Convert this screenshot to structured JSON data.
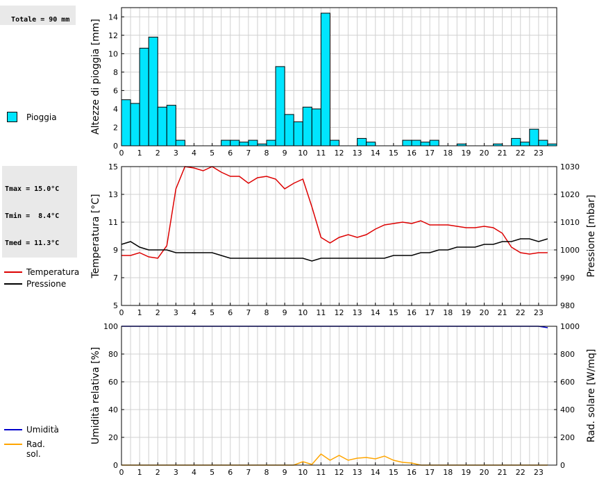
{
  "rain_info": {
    "total_label": "Totale = 90 mm"
  },
  "temp_info": {
    "lines": [
      "Tmax = 15.0°C",
      "Tmin =  8.4°C",
      "Tmed = 11.3°C"
    ]
  },
  "legends": {
    "pioggia": "Pioggia",
    "temperatura": "Temperatura",
    "pressione": "Pressione",
    "umidita": "Umidità",
    "rad_sol": "Rad. sol."
  },
  "colors": {
    "rain_fill": "#00e5ff",
    "temperature": "#dd0000",
    "pressure": "#000000",
    "humidity": "#0000cc",
    "radiation": "#ffa500",
    "grid": "#d0d0d0"
  },
  "chart_data": [
    {
      "type": "bar",
      "ylabel": "Altezze di pioggia [mm]",
      "ylim": [
        0,
        15
      ],
      "yticks": [
        0,
        2,
        4,
        6,
        8,
        10,
        12,
        14
      ],
      "xlim": [
        0,
        24
      ],
      "xticks": [
        0,
        1,
        2,
        3,
        4,
        5,
        6,
        7,
        8,
        9,
        10,
        11,
        12,
        13,
        14,
        15,
        16,
        17,
        18,
        19,
        20,
        21,
        22,
        23
      ],
      "bar_width_hours": 0.5,
      "x": [
        0,
        0.5,
        1,
        1.5,
        2,
        2.5,
        3,
        3.5,
        4,
        4.5,
        5,
        5.5,
        6,
        6.5,
        7,
        7.5,
        8,
        8.5,
        9,
        9.5,
        10,
        10.5,
        11,
        11.5,
        12,
        12.5,
        13,
        13.5,
        14,
        14.5,
        15,
        15.5,
        16,
        16.5,
        17,
        17.5,
        18,
        18.5,
        19,
        19.5,
        20,
        20.5,
        21,
        21.5,
        22,
        22.5,
        23,
        23.5
      ],
      "values": [
        5.0,
        4.6,
        10.6,
        11.8,
        4.2,
        4.4,
        0.6,
        0,
        0,
        0,
        0,
        0.6,
        0.6,
        0.4,
        0.6,
        0.2,
        0.6,
        8.6,
        3.4,
        2.6,
        4.2,
        4.0,
        14.4,
        0.6,
        0,
        0,
        0.8,
        0.4,
        0,
        0,
        0,
        0.6,
        0.6,
        0.4,
        0.6,
        0,
        0,
        0.2,
        0,
        0,
        0,
        0.2,
        0,
        0.8,
        0.4,
        1.8,
        0.6,
        0.2
      ],
      "series_name": "Pioggia"
    },
    {
      "type": "line",
      "ylabel": "Temperatura [°C]",
      "ylabel_right": "Pressione [mbar]",
      "ylim": [
        5,
        15
      ],
      "yticks": [
        5,
        7,
        9,
        11,
        13,
        15
      ],
      "ylim_right": [
        980,
        1030
      ],
      "yticks_right": [
        980,
        990,
        1000,
        1010,
        1020,
        1030
      ],
      "xlim": [
        0,
        24
      ],
      "xticks": [
        0,
        1,
        2,
        3,
        4,
        5,
        6,
        7,
        8,
        9,
        10,
        11,
        12,
        13,
        14,
        15,
        16,
        17,
        18,
        19,
        20,
        21,
        22,
        23
      ],
      "series": [
        {
          "name": "Temperatura",
          "axis": "left",
          "x": [
            0,
            0.5,
            1,
            1.5,
            2,
            2.5,
            3,
            3.5,
            4,
            4.5,
            5,
            5.5,
            6,
            6.5,
            7,
            7.5,
            8,
            8.5,
            9,
            9.5,
            10,
            10.5,
            11,
            11.5,
            12,
            12.5,
            13,
            13.5,
            14,
            14.5,
            15,
            15.5,
            16,
            16.5,
            17,
            17.5,
            18,
            18.5,
            19,
            19.5,
            20,
            20.5,
            21,
            21.5,
            22,
            22.5,
            23,
            23.5
          ],
          "values": [
            8.6,
            8.6,
            8.8,
            8.5,
            8.4,
            9.3,
            13.4,
            15.0,
            14.9,
            14.7,
            15.0,
            14.6,
            14.3,
            14.3,
            13.8,
            14.2,
            14.3,
            14.1,
            13.4,
            13.8,
            14.1,
            12.1,
            9.9,
            9.5,
            9.9,
            10.1,
            9.9,
            10.1,
            10.5,
            10.8,
            10.9,
            11.0,
            10.9,
            11.1,
            10.8,
            10.8,
            10.8,
            10.7,
            10.6,
            10.6,
            10.7,
            10.6,
            10.2,
            9.2,
            8.8,
            8.7,
            8.8,
            8.8
          ]
        },
        {
          "name": "Pressione",
          "axis": "right",
          "x": [
            0,
            0.5,
            1,
            1.5,
            2,
            2.5,
            3,
            3.5,
            4,
            4.5,
            5,
            5.5,
            6,
            6.5,
            7,
            7.5,
            8,
            8.5,
            9,
            9.5,
            10,
            10.5,
            11,
            11.5,
            12,
            12.5,
            13,
            13.5,
            14,
            14.5,
            15,
            15.5,
            16,
            16.5,
            17,
            17.5,
            18,
            18.5,
            19,
            19.5,
            20,
            20.5,
            21,
            21.5,
            22,
            22.5,
            23,
            23.5
          ],
          "values": [
            1002,
            1003,
            1001,
            1000,
            1000,
            1000,
            999,
            999,
            999,
            999,
            999,
            998,
            997,
            997,
            997,
            997,
            997,
            997,
            997,
            997,
            997,
            996,
            997,
            997,
            997,
            997,
            997,
            997,
            997,
            997,
            998,
            998,
            998,
            999,
            999,
            1000,
            1000,
            1001,
            1001,
            1001,
            1002,
            1002,
            1003,
            1003,
            1004,
            1004,
            1003,
            1004
          ]
        }
      ]
    },
    {
      "type": "line",
      "ylabel": "Umidità relativa [%]",
      "ylabel_right": "Rad. solare [W/mq]",
      "ylim": [
        0,
        100
      ],
      "yticks": [
        0,
        20,
        40,
        60,
        80,
        100
      ],
      "ylim_right": [
        0,
        1000
      ],
      "yticks_right": [
        0,
        200,
        400,
        600,
        800,
        1000
      ],
      "xlim": [
        0,
        24
      ],
      "xticks": [
        0,
        1,
        2,
        3,
        4,
        5,
        6,
        7,
        8,
        9,
        10,
        11,
        12,
        13,
        14,
        15,
        16,
        17,
        18,
        19,
        20,
        21,
        22,
        23
      ],
      "series": [
        {
          "name": "Umidità",
          "axis": "left",
          "x": [
            0,
            0.5,
            1,
            1.5,
            2,
            2.5,
            3,
            3.5,
            4,
            4.5,
            5,
            5.5,
            6,
            6.5,
            7,
            7.5,
            8,
            8.5,
            9,
            9.5,
            10,
            10.5,
            11,
            11.5,
            12,
            12.5,
            13,
            13.5,
            14,
            14.5,
            15,
            15.5,
            16,
            16.5,
            17,
            17.5,
            18,
            18.5,
            19,
            19.5,
            20,
            20.5,
            21,
            21.5,
            22,
            22.5,
            23,
            23.5
          ],
          "values": [
            100,
            100,
            100,
            100,
            100,
            100,
            100,
            100,
            100,
            100,
            100,
            100,
            100,
            100,
            100,
            100,
            100,
            100,
            100,
            100,
            100,
            100,
            100,
            100,
            100,
            100,
            100,
            100,
            100,
            100,
            100,
            100,
            100,
            100,
            100,
            100,
            100,
            100,
            100,
            100,
            100,
            100,
            100,
            100,
            100,
            100,
            100,
            99
          ]
        },
        {
          "name": "Rad. sol.",
          "axis": "right",
          "x": [
            0,
            0.5,
            1,
            1.5,
            2,
            2.5,
            3,
            3.5,
            4,
            4.5,
            5,
            5.5,
            6,
            6.5,
            7,
            7.5,
            8,
            8.5,
            9,
            9.5,
            10,
            10.5,
            11,
            11.5,
            12,
            12.5,
            13,
            13.5,
            14,
            14.5,
            15,
            15.5,
            16,
            16.5,
            17,
            17.5,
            18,
            18.5,
            19,
            19.5,
            20,
            20.5,
            21,
            21.5,
            22,
            22.5,
            23,
            23.5
          ],
          "values": [
            0,
            0,
            0,
            0,
            0,
            0,
            0,
            0,
            0,
            0,
            0,
            0,
            0,
            0,
            0,
            0,
            0,
            0,
            0,
            0,
            25,
            5,
            80,
            35,
            70,
            35,
            50,
            55,
            45,
            65,
            35,
            20,
            15,
            0,
            0,
            0,
            0,
            0,
            0,
            0,
            0,
            0,
            0,
            0,
            0,
            0,
            0,
            0
          ]
        }
      ]
    }
  ]
}
